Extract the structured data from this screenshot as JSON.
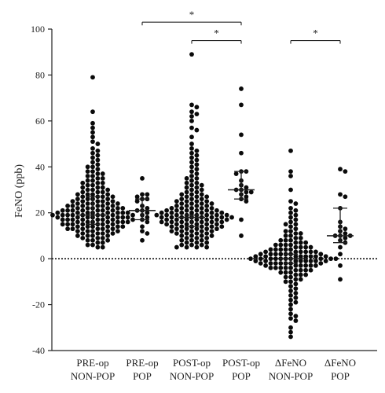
{
  "chart_data": {
    "type": "scatter",
    "subtype": "dot-plot-median-iqr",
    "ylabel": "FeNO (ppb)",
    "ylim": [
      -40,
      100
    ],
    "yticks": [
      -40,
      -20,
      0,
      20,
      40,
      60,
      80,
      100
    ],
    "reference_line": {
      "y": 0,
      "style": "dotted"
    },
    "categories": [
      {
        "line1": "PRE-op",
        "line2": "NON-POP"
      },
      {
        "line1": "PRE-op",
        "line2": "POP"
      },
      {
        "line1": "POST-op",
        "line2": "NON-POP"
      },
      {
        "line1": "POST-op",
        "line2": "POP"
      },
      {
        "line1": "ΔFeNO",
        "line2": "NON-POP"
      },
      {
        "line1": "ΔFeNO",
        "line2": "POP"
      }
    ],
    "groups": [
      {
        "median": 19,
        "q1": 15,
        "q3": 27,
        "values": [
          79,
          64,
          59,
          57,
          55,
          53,
          51,
          50,
          48,
          47,
          46,
          45,
          44,
          43,
          42,
          41,
          40,
          40,
          39,
          38,
          38,
          37,
          37,
          36,
          36,
          35,
          35,
          34,
          34,
          33,
          33,
          33,
          32,
          32,
          31,
          31,
          31,
          30,
          30,
          30,
          29,
          29,
          29,
          28,
          28,
          28,
          28,
          27,
          27,
          27,
          27,
          26,
          26,
          26,
          26,
          25,
          25,
          25,
          25,
          25,
          24,
          24,
          24,
          24,
          24,
          23,
          23,
          23,
          23,
          23,
          23,
          22,
          22,
          22,
          22,
          22,
          22,
          21,
          21,
          21,
          21,
          21,
          21,
          21,
          20,
          20,
          20,
          20,
          20,
          20,
          20,
          20,
          19,
          19,
          19,
          19,
          19,
          19,
          19,
          19,
          19,
          18,
          18,
          18,
          18,
          18,
          18,
          18,
          18,
          17,
          17,
          17,
          17,
          17,
          17,
          17,
          17,
          16,
          16,
          16,
          16,
          16,
          16,
          16,
          15,
          15,
          15,
          15,
          15,
          15,
          15,
          14,
          14,
          14,
          14,
          14,
          14,
          13,
          13,
          13,
          13,
          13,
          13,
          12,
          12,
          12,
          12,
          12,
          11,
          11,
          11,
          11,
          10,
          10,
          10,
          10,
          9,
          9,
          9,
          8,
          8,
          8,
          7,
          7,
          6,
          6,
          5,
          5
        ]
      },
      {
        "median": 21,
        "q1": 17,
        "q3": 26,
        "values": [
          35,
          28,
          28,
          27,
          26,
          26,
          25,
          23,
          22,
          21,
          21,
          20,
          19,
          18,
          17,
          16,
          14,
          12,
          11,
          8
        ]
      },
      {
        "median": 18,
        "q1": 14,
        "q3": 19,
        "values": [
          89,
          67,
          66,
          64,
          63,
          62,
          60,
          57,
          56,
          53,
          50,
          48,
          47,
          46,
          45,
          44,
          43,
          42,
          41,
          40,
          39,
          38,
          37,
          36,
          35,
          35,
          34,
          33,
          33,
          32,
          32,
          31,
          31,
          30,
          30,
          29,
          29,
          28,
          28,
          28,
          27,
          27,
          27,
          26,
          26,
          26,
          25,
          25,
          25,
          25,
          24,
          24,
          24,
          24,
          23,
          23,
          23,
          23,
          22,
          22,
          22,
          22,
          22,
          21,
          21,
          21,
          21,
          21,
          21,
          20,
          20,
          20,
          20,
          20,
          20,
          20,
          19,
          19,
          19,
          19,
          19,
          19,
          19,
          19,
          18,
          18,
          18,
          18,
          18,
          18,
          18,
          18,
          17,
          17,
          17,
          17,
          17,
          17,
          17,
          16,
          16,
          16,
          16,
          16,
          16,
          16,
          15,
          15,
          15,
          15,
          15,
          15,
          14,
          14,
          14,
          14,
          14,
          14,
          13,
          13,
          13,
          13,
          13,
          12,
          12,
          12,
          12,
          12,
          11,
          11,
          11,
          11,
          10,
          10,
          10,
          10,
          9,
          9,
          9,
          8,
          8,
          8,
          7,
          7,
          7,
          6,
          6,
          6,
          5,
          5,
          5,
          5
        ]
      },
      {
        "median": 30,
        "q1": 26,
        "q3": 38,
        "values": [
          74,
          67,
          54,
          46,
          38,
          38,
          37,
          34,
          32,
          31,
          30,
          30,
          29,
          29,
          28,
          27,
          26,
          25,
          17,
          10
        ]
      },
      {
        "median": 0,
        "q1": -2,
        "q3": 2,
        "values": [
          47,
          38,
          36,
          30,
          25,
          24,
          22,
          21,
          20,
          19,
          18,
          17,
          16,
          15,
          15,
          14,
          13,
          12,
          12,
          11,
          11,
          10,
          10,
          9,
          9,
          8,
          8,
          8,
          7,
          7,
          7,
          6,
          6,
          6,
          6,
          5,
          5,
          5,
          5,
          4,
          4,
          4,
          4,
          4,
          3,
          3,
          3,
          3,
          3,
          3,
          2,
          2,
          2,
          2,
          2,
          2,
          2,
          1,
          1,
          1,
          1,
          1,
          1,
          1,
          1,
          0,
          0,
          0,
          0,
          0,
          0,
          0,
          0,
          0,
          0,
          -1,
          -1,
          -1,
          -1,
          -1,
          -1,
          -1,
          -1,
          -2,
          -2,
          -2,
          -2,
          -2,
          -2,
          -2,
          -3,
          -3,
          -3,
          -3,
          -3,
          -3,
          -4,
          -4,
          -4,
          -4,
          -4,
          -5,
          -5,
          -5,
          -5,
          -6,
          -6,
          -6,
          -7,
          -7,
          -7,
          -8,
          -8,
          -9,
          -9,
          -10,
          -10,
          -11,
          -12,
          -13,
          -14,
          -15,
          -16,
          -17,
          -18,
          -19,
          -20,
          -22,
          -24,
          -25,
          -26,
          -27,
          -30,
          -32,
          -34
        ]
      },
      {
        "median": 10,
        "q1": 7,
        "q3": 22,
        "values": [
          39,
          38,
          28,
          27,
          22,
          16,
          14,
          13,
          12,
          11,
          10,
          10,
          10,
          9,
          8,
          7,
          5,
          2,
          -3,
          -9
        ]
      }
    ],
    "significance": [
      {
        "from": 1,
        "to": 3,
        "label": "*",
        "y": 103
      },
      {
        "from": 2,
        "to": 3,
        "label": "*",
        "y": 95
      },
      {
        "from": 4,
        "to": 5,
        "label": "*",
        "y": 95
      }
    ]
  }
}
